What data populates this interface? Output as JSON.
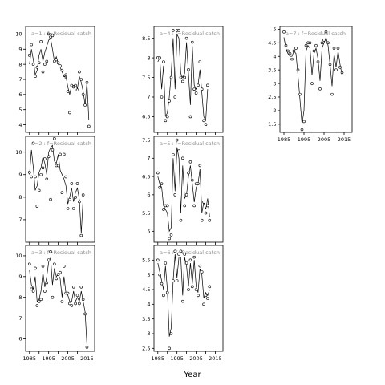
{
  "chart_data": [
    {
      "type": "line",
      "label": "a=1 : f=Residual catch",
      "x": [
        1985,
        1986,
        1987,
        1988,
        1989,
        1990,
        1991,
        1992,
        1993,
        1994,
        1995,
        1996,
        1997,
        1998,
        1999,
        2000,
        2001,
        2002,
        2003,
        2004,
        2005,
        2006,
        2007,
        2008,
        2009,
        2010,
        2011,
        2012,
        2013,
        2014,
        2015,
        2016,
        2017,
        2018,
        2019
      ],
      "observed": [
        8.6,
        9.3,
        8.0,
        7.2,
        7.8,
        8.1,
        9.5,
        7.5,
        8.0,
        8.2,
        10.0,
        9.8,
        9.9,
        8.2,
        8.3,
        8.1,
        7.9,
        7.6,
        7.1,
        7.3,
        6.2,
        4.8,
        6.6,
        6.5,
        6.6,
        6.3,
        7.5,
        7.0,
        6.0,
        5.3,
        6.8,
        3.9,
        null,
        null,
        null
      ],
      "fitted": [
        8.0,
        9.0,
        8.3,
        7.3,
        7.6,
        8.6,
        9.0,
        8.2,
        8.8,
        9.2,
        9.6,
        9.7,
        9.0,
        8.2,
        8.5,
        8.0,
        7.8,
        7.5,
        7.2,
        7.2,
        6.5,
        6.0,
        6.6,
        6.6,
        6.6,
        6.4,
        7.2,
        6.8,
        6.2,
        5.3,
        6.8,
        4.3,
        null,
        null,
        null
      ],
      "ylim": [
        3.5,
        10.5
      ],
      "yticks": [
        4,
        5,
        6,
        7,
        8,
        9,
        10
      ]
    },
    {
      "type": "line",
      "label": "a=2 : f=Residual catch",
      "x": [
        1985,
        1986,
        1987,
        1988,
        1989,
        1990,
        1991,
        1992,
        1993,
        1994,
        1995,
        1996,
        1997,
        1998,
        1999,
        2000,
        2001,
        2002,
        2003,
        2004,
        2005,
        2006,
        2007,
        2008,
        2009,
        2010,
        2011,
        2012,
        2013,
        2014,
        2015,
        2016,
        2017,
        2018,
        2019
      ],
      "observed": [
        9.1,
        8.9,
        10.4,
        8.9,
        7.6,
        8.3,
        9.0,
        9.3,
        9.7,
        8.8,
        9.8,
        7.9,
        10.1,
        10.6,
        9.4,
        9.4,
        9.9,
        8.2,
        9.9,
        8.9,
        7.5,
        7.9,
        8.6,
        7.5,
        8.0,
        8.6,
        7.8,
        6.3,
        8.1,
        null,
        null,
        null,
        null,
        null,
        null
      ],
      "fitted": [
        9.0,
        10.1,
        9.3,
        8.3,
        8.5,
        9.1,
        9.3,
        9.8,
        9.5,
        9.0,
        10.0,
        10.2,
        10.3,
        9.6,
        9.5,
        9.9,
        9.2,
        9.0,
        8.8,
        8.5,
        7.7,
        8.0,
        8.4,
        7.8,
        8.2,
        8.4,
        7.9,
        6.4,
        8.0,
        null,
        null,
        null,
        null,
        null,
        null
      ],
      "ylim": [
        6.0,
        10.7
      ],
      "yticks": [
        7,
        8,
        9,
        10
      ]
    },
    {
      "type": "line",
      "label": "a=3 : f=Residual catch",
      "x": [
        1985,
        1986,
        1987,
        1988,
        1989,
        1990,
        1991,
        1992,
        1993,
        1994,
        1995,
        1996,
        1997,
        1998,
        1999,
        2000,
        2001,
        2002,
        2003,
        2004,
        2005,
        2006,
        2007,
        2008,
        2009,
        2010,
        2011,
        2012,
        2013,
        2014,
        2015,
        2016,
        2017,
        2018,
        2019
      ],
      "observed": [
        9.6,
        8.4,
        8.3,
        9.4,
        7.6,
        7.8,
        7.9,
        9.5,
        8.3,
        8.7,
        9.8,
        10.2,
        8.0,
        9.6,
        8.9,
        9.1,
        9.2,
        7.8,
        9.5,
        8.2,
        8.2,
        7.7,
        7.6,
        8.5,
        7.7,
        8.1,
        7.7,
        8.5,
        7.9,
        7.2,
        5.6,
        null,
        null,
        null,
        null
      ],
      "fitted": [
        9.3,
        8.6,
        8.4,
        9.0,
        7.8,
        7.9,
        8.3,
        9.2,
        8.5,
        9.0,
        9.7,
        9.9,
        8.6,
        9.4,
        9.0,
        9.1,
        8.9,
        8.0,
        9.0,
        8.2,
        8.1,
        7.8,
        7.8,
        8.3,
        7.8,
        8.0,
        7.8,
        8.3,
        7.8,
        7.3,
        5.7,
        null,
        null,
        null,
        null
      ],
      "ylim": [
        5.4,
        10.5
      ],
      "yticks": [
        6,
        7,
        8,
        9,
        10
      ]
    },
    {
      "type": "line",
      "label": "a=4 : f=Residual catch",
      "x": [
        1985,
        1986,
        1987,
        1988,
        1989,
        1990,
        1991,
        1992,
        1993,
        1994,
        1995,
        1996,
        1997,
        1998,
        1999,
        2000,
        2001,
        2002,
        2003,
        2004,
        2005,
        2006,
        2007,
        2008,
        2009,
        2010,
        2011,
        2012,
        2013,
        2014,
        2015,
        2016,
        2017,
        2018,
        2019
      ],
      "observed": [
        8.0,
        8.0,
        7.0,
        7.9,
        6.4,
        6.5,
        6.9,
        7.5,
        8.7,
        7.0,
        8.7,
        8.7,
        7.5,
        7.4,
        7.5,
        8.5,
        7.7,
        6.5,
        8.4,
        7.2,
        7.1,
        7.3,
        7.9,
        7.2,
        6.4,
        6.3,
        7.3,
        null,
        null,
        null,
        null,
        null,
        null,
        null,
        null
      ],
      "fitted": [
        7.9,
        8.0,
        7.2,
        7.8,
        6.5,
        6.6,
        7.0,
        7.6,
        8.5,
        7.2,
        8.6,
        8.5,
        7.6,
        7.5,
        7.6,
        8.4,
        7.6,
        6.8,
        8.3,
        7.3,
        7.2,
        7.3,
        7.7,
        7.1,
        6.5,
        6.4,
        7.2,
        null,
        null,
        null,
        null,
        null,
        null,
        null,
        null
      ],
      "ylim": [
        6.1,
        8.8
      ],
      "yticks": [
        6.5,
        7.0,
        7.5,
        8.0,
        8.5
      ]
    },
    {
      "type": "line",
      "label": "a=5 : f=Residual catch",
      "x": [
        1985,
        1986,
        1987,
        1988,
        1989,
        1990,
        1991,
        1992,
        1993,
        1994,
        1995,
        1996,
        1997,
        1998,
        1999,
        2000,
        2001,
        2002,
        2003,
        2004,
        2005,
        2006,
        2007,
        2008,
        2009,
        2010,
        2011,
        2012,
        2013,
        2014,
        2015,
        2016,
        2017,
        2018,
        2019
      ],
      "observed": [
        6.6,
        6.2,
        6.3,
        5.6,
        5.7,
        5.7,
        4.8,
        4.9,
        7.1,
        6.0,
        7.5,
        7.2,
        5.3,
        7.0,
        5.7,
        6.0,
        6.6,
        6.9,
        6.4,
        5.7,
        6.3,
        6.3,
        6.8,
        5.3,
        5.8,
        5.5,
        5.7,
        5.3,
        null,
        null,
        null,
        null,
        null,
        null,
        null
      ],
      "fitted": [
        6.5,
        6.3,
        6.2,
        5.7,
        5.6,
        5.5,
        5.0,
        5.1,
        7.0,
        6.1,
        7.3,
        7.0,
        5.5,
        6.8,
        5.9,
        6.0,
        6.5,
        6.8,
        6.3,
        5.8,
        6.2,
        6.3,
        6.7,
        5.5,
        5.8,
        5.6,
        5.9,
        5.4,
        null,
        null,
        null,
        null,
        null,
        null,
        null
      ],
      "ylim": [
        4.7,
        7.6
      ],
      "yticks": [
        5.0,
        5.5,
        6.0,
        6.5,
        7.0,
        7.5
      ]
    },
    {
      "type": "line",
      "label": "a=6 : f=Residual catch",
      "x": [
        1985,
        1986,
        1987,
        1988,
        1989,
        1990,
        1991,
        1992,
        1993,
        1994,
        1995,
        1996,
        1997,
        1998,
        1999,
        2000,
        2001,
        2002,
        2003,
        2004,
        2005,
        2006,
        2007,
        2008,
        2009,
        2010,
        2011,
        2012,
        2013,
        2014,
        2015,
        2016,
        2017,
        2018,
        2019
      ],
      "observed": [
        5.5,
        5.0,
        4.7,
        4.3,
        5.4,
        4.4,
        2.5,
        3.0,
        4.8,
        5.8,
        4.8,
        5.7,
        5.8,
        4.1,
        5.7,
        5.4,
        4.5,
        5.5,
        4.6,
        5.6,
        4.5,
        4.3,
        5.3,
        5.1,
        4.0,
        4.3,
        4.2,
        4.6,
        null,
        null,
        null,
        null,
        null,
        null,
        null
      ],
      "fitted": [
        5.4,
        5.1,
        4.8,
        4.5,
        5.3,
        4.5,
        2.9,
        3.2,
        4.8,
        5.7,
        4.9,
        5.6,
        5.6,
        4.3,
        5.6,
        5.3,
        4.6,
        5.4,
        4.7,
        5.5,
        4.6,
        4.4,
        5.2,
        5.0,
        4.2,
        4.4,
        4.3,
        4.5,
        null,
        null,
        null,
        null,
        null,
        null,
        null
      ],
      "ylim": [
        2.4,
        6.0
      ],
      "yticks": [
        2.5,
        3.0,
        3.5,
        4.0,
        4.5,
        5.0,
        5.5
      ]
    },
    {
      "type": "line",
      "label": "a=7 : f=Residual catch",
      "x": [
        1985,
        1986,
        1987,
        1988,
        1989,
        1990,
        1991,
        1992,
        1993,
        1994,
        1995,
        1996,
        1997,
        1998,
        1999,
        2000,
        2001,
        2002,
        2003,
        2004,
        2005,
        2006,
        2007,
        2008,
        2009,
        2010,
        2011,
        2012,
        2013,
        2014,
        2015,
        2016,
        2017,
        2018,
        2019
      ],
      "observed": [
        4.9,
        4.4,
        4.2,
        4.1,
        3.9,
        4.2,
        4.3,
        3.5,
        2.6,
        1.3,
        1.6,
        4.4,
        4.5,
        4.5,
        3.0,
        4.2,
        4.4,
        3.8,
        2.8,
        4.5,
        4.6,
        4.9,
        4.5,
        3.7,
        2.6,
        4.3,
        3.5,
        4.3,
        3.6,
        3.4,
        null,
        null,
        null,
        null,
        null
      ],
      "fitted": [
        4.7,
        4.3,
        4.1,
        4.0,
        4.0,
        4.2,
        4.1,
        3.3,
        2.4,
        1.5,
        2.0,
        4.2,
        4.4,
        4.3,
        3.3,
        4.1,
        4.3,
        3.9,
        3.1,
        4.3,
        4.5,
        4.7,
        4.4,
        3.7,
        2.9,
        4.1,
        3.6,
        4.2,
        3.7,
        3.3,
        null,
        null,
        null,
        null,
        null
      ],
      "ylim": [
        1.2,
        5.1
      ],
      "yticks": [
        1.5,
        2.0,
        2.5,
        3.0,
        3.5,
        4.0,
        4.5,
        5.0
      ]
    }
  ],
  "xlim": [
    1983,
    2019
  ],
  "xticks": [
    1985,
    1995,
    2005,
    2015
  ],
  "xticks_minor": [
    1990,
    2000,
    2010
  ],
  "x_title": "Year"
}
